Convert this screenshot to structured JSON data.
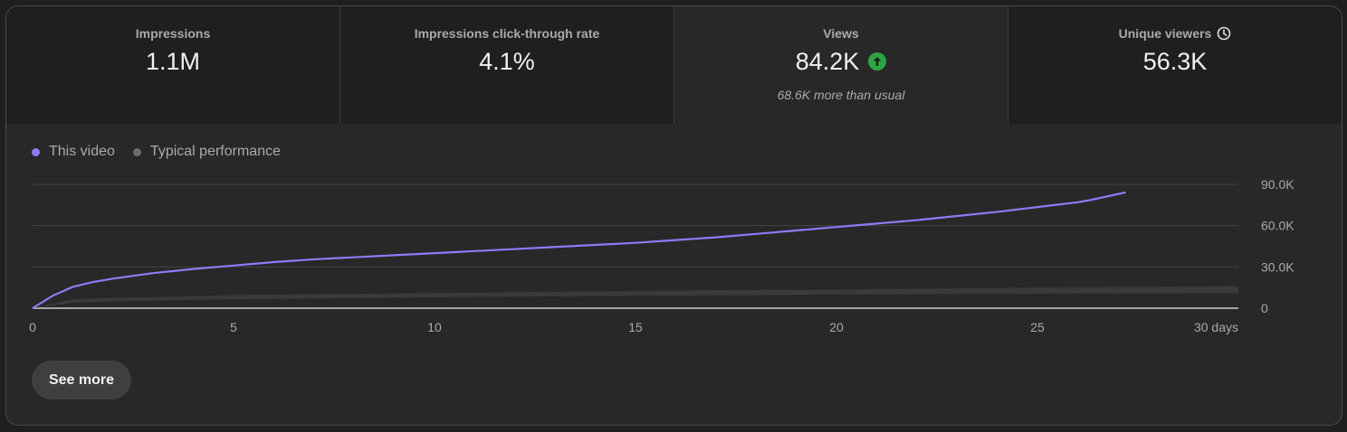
{
  "metrics": [
    {
      "label": "Impressions",
      "value": "1.1M"
    },
    {
      "label": "Impressions click-through rate",
      "value": "4.1%"
    },
    {
      "label": "Views",
      "value": "84.2K",
      "note": "68.6K more than usual",
      "trend_icon": "arrow-up-circle-icon"
    },
    {
      "label": "Unique viewers",
      "value": "56.3K",
      "info_icon": "clock-icon"
    }
  ],
  "legend": {
    "this_video": "This video",
    "typical": "Typical performance"
  },
  "colors": {
    "this_video": "#8b7cf6",
    "typical": "#6b6b6b",
    "band": "#3a3a3a",
    "up": "#2ba640"
  },
  "button": {
    "see_more": "See more"
  },
  "chart_data": {
    "type": "line",
    "x_tick_labels": [
      "0",
      "5",
      "10",
      "15",
      "20",
      "25",
      "30 days"
    ],
    "x_ticks": [
      0,
      5,
      10,
      15,
      20,
      25,
      30
    ],
    "y_tick_labels": [
      "0",
      "30.0K",
      "60.0K",
      "90.0K"
    ],
    "y_ticks": [
      0,
      30000,
      60000,
      90000
    ],
    "xlim": [
      0,
      30
    ],
    "ylim": [
      0,
      90000
    ],
    "grid": true,
    "legend_position": "top-left",
    "series": [
      {
        "name": "This video",
        "x": [
          0,
          0.5,
          1,
          1.5,
          2,
          3,
          4,
          5,
          6,
          7,
          8,
          9,
          10,
          11,
          12,
          13,
          14,
          15,
          16,
          17,
          18,
          19,
          20,
          21,
          22,
          23,
          24,
          25,
          26,
          26.3,
          27.2
        ],
        "y": [
          0,
          9000,
          15500,
          19000,
          21500,
          25500,
          28500,
          31000,
          33500,
          35500,
          37000,
          38500,
          40000,
          41500,
          43000,
          44500,
          46000,
          47500,
          49500,
          51500,
          54000,
          56500,
          59000,
          61500,
          64000,
          67000,
          70000,
          73500,
          77000,
          78500,
          84200
        ]
      },
      {
        "name": "Typical performance",
        "type": "band",
        "x": [
          0,
          1,
          2,
          3,
          5,
          10,
          15,
          20,
          25,
          30
        ],
        "y_low": [
          0,
          4000,
          5000,
          5500,
          6500,
          8000,
          9000,
          10000,
          10500,
          11000
        ],
        "y_high": [
          0,
          6500,
          7500,
          8000,
          9500,
          11000,
          12500,
          13500,
          15000,
          16000
        ]
      }
    ]
  }
}
